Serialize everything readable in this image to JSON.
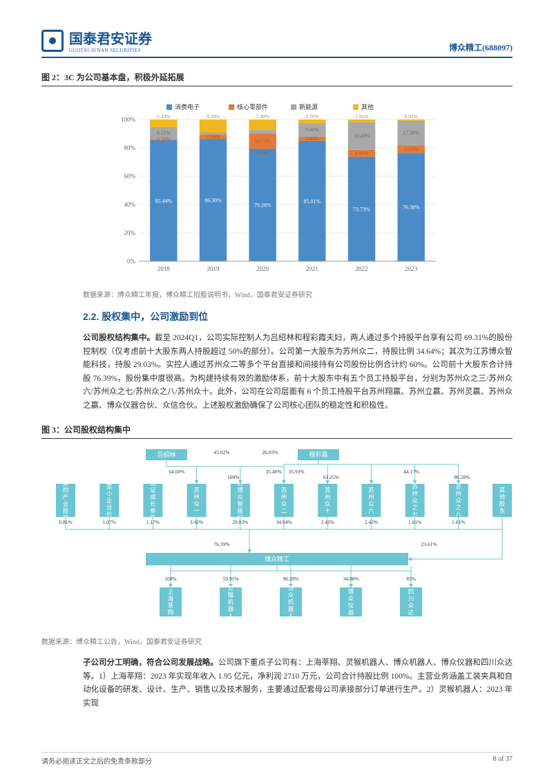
{
  "header": {
    "logo_cn": "国泰君安证券",
    "logo_en": "GUOTAI JUNAN SECURITIES",
    "stock_name": "博众精工",
    "stock_code": "(688097)"
  },
  "fig2": {
    "title": "图 2：3C 为公司基本盘，积极外延拓展",
    "type": "stacked-bar",
    "legend": [
      "消费电子",
      "核心零部件",
      "新能源",
      "其他"
    ],
    "colors": [
      "#4B8BC8",
      "#E07B39",
      "#A8A8A8",
      "#F2B61E"
    ],
    "categories": [
      "2018",
      "2019",
      "2020",
      "2021",
      "2022",
      "2023"
    ],
    "series": [
      {
        "name": "消费电子",
        "values": [
          85.44,
          86.3,
          79.28,
          85.01,
          73.73,
          76.38
        ]
      },
      {
        "name": "核心零部件",
        "values": [
          0.76,
          2.94,
          10.74,
          2.83,
          4.86,
          5.33
        ]
      },
      {
        "name": "新能源",
        "values": [
          8.51,
          1.48,
          2.58,
          9.46,
          19.49,
          17.38
        ]
      },
      {
        "name": "其他",
        "values": [
          5.29,
          9.29,
          7.39,
          2.7,
          1.91,
          0.91
        ]
      }
    ],
    "labels_top": [
      "5.29%",
      "9.29%",
      "7.39%",
      "2.70%",
      "1.91%",
      "0.91%"
    ],
    "labels_mid1": [
      "8.51%",
      "",
      "",
      "9.46%",
      "19.49%",
      "17.38%"
    ],
    "labels_mid2": [
      "0.76%",
      "2.94%",
      "10.74%",
      "2.83%",
      "4.86%",
      "5.33%"
    ],
    "labels_bot": [
      "",
      "",
      "2.58%",
      "",
      "",
      ""
    ],
    "labels_main": [
      "85.44%",
      "86.30%",
      "79.28%",
      "85.01%",
      "73.73%",
      "76.38%"
    ],
    "ylim": [
      0,
      100
    ],
    "ytick_step": 20,
    "bar_width": 0.55,
    "background": "#ffffff",
    "grid_color": "#d0d0d0",
    "source": "数据来源：博众精工年报，博众精工招股说明书，Wind，国泰君安证券研究"
  },
  "section22": {
    "heading": "2.2.  股权集中，公司激励到位",
    "para": "公司股权结构集中。截至 2024Q1，公司实际控制人为吕绍林和程彩霞夫妇，两人通过多个持股平台享有公司 69.31%的股份控制权（仅考虑前十大股东两人持股超过 50%的部分）。公司第一大股东为苏州众二，持股比例 34.64%；其次为江苏博众智能科技，持股 29.03%。实控人通过苏州众二等多个平台直接和间接持有公司股份比例合计约 60%。公司前十大股东合计持股 76.39%，股份集中度很高。为构建持续有效的激励体系，前十大股东中有五个员工持股平台，分别为苏州众之三/苏州众六/苏州众之七/苏州众之八/苏州众十。此外，公司在公司层面有 6 个员工持股平台苏州翔赢、苏州立赢、苏州灵赢、苏州众之赢、博众仪器合伙、众信合伙。上述股权激励确保了公司核心团队的稳定性和积极性。",
    "bold_lead": "公司股权结构集中。"
  },
  "fig3": {
    "title": "图 3：公司股权结构集中",
    "type": "tree",
    "node_color": "#6BC5D2",
    "node_text_color": "#ffffff",
    "line_color": "#6BC5D2",
    "pct_color": "#333333",
    "top_nodes": [
      {
        "label": "吕绍林",
        "x": 180,
        "pct_right": "45.02%"
      },
      {
        "label": "程彩霞",
        "x": 400,
        "pct_left": "26.03%"
      }
    ],
    "top_edge_pcts": [
      "64.60%",
      "100%",
      "35.40%",
      "35.93%",
      "61.25%",
      "44.17%",
      "80.28%"
    ],
    "mid_nodes": [
      {
        "label": "美的产业投资",
        "pct": "0.81%"
      },
      {
        "label": "中意小企业价值",
        "pct": "1.07%"
      },
      {
        "label": "招证成长参号",
        "pct": "1.17%"
      },
      {
        "label": "苏州众一",
        "pct": "2.42%"
      },
      {
        "label": "江苏博众智能科技",
        "pct": "29.03%"
      },
      {
        "label": "苏州众二",
        "pct": "34.64%"
      },
      {
        "label": "苏州众十",
        "pct": "2.42%"
      },
      {
        "label": "苏州众六",
        "pct": "2.42%"
      },
      {
        "label": "苏州众之七",
        "pct": "1.61%"
      },
      {
        "label": "苏州众之八",
        "pct": "1.61%"
      },
      {
        "label": "其他股东",
        "pct": ""
      }
    ],
    "main_line_pct_left": "76.39%",
    "main_line_pct_right": "23.61%",
    "company_node": "博众精工",
    "sub_nodes": [
      {
        "label": "上海莘翔",
        "pct": "100%"
      },
      {
        "label": "灵猴机器人",
        "pct": "59.91%"
      },
      {
        "label": "博众机器人",
        "pct": "90.29%"
      },
      {
        "label": "博众仪器",
        "pct": "34.08%"
      },
      {
        "label": "四川众达",
        "pct": "85%"
      }
    ],
    "source": "数据来源：博众精工公告，Wind，国泰君安证券研究"
  },
  "body2": {
    "bold_lead": "子公司分工明确，符合公司发展战略。",
    "para": "子公司分工明确，符合公司发展战略。公司旗下重点子公司有：上海莘翔、灵猴机器人、博众机器人、博众仪器和四川众达等。1）上海莘翔：2023 年实现年收入 1.95 亿元，净利润 2710 万元，公司合计持股比例 100%。主营业务涵盖工装夹具和自动化设备的研发、设计、生产、销售以及技术服务，主要通过配套母公司承接部分订单进行生产。2）灵猴机器人：2023 年实现"
  },
  "footer": {
    "left": "请务必阅读正文之后的免责条款部分",
    "right": "8 of 37"
  }
}
